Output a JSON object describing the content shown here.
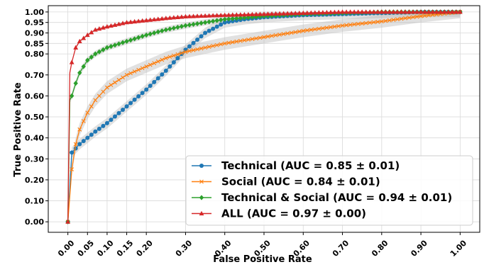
{
  "chart_data": {
    "type": "line",
    "xlabel": "False Positive Rate",
    "ylabel": "True Positive Rate",
    "title": "",
    "xlim": [
      -0.05,
      1.05
    ],
    "ylim": [
      -0.05,
      1.03
    ],
    "x_ticks": [
      0.0,
      0.05,
      0.1,
      0.15,
      0.2,
      0.3,
      0.4,
      0.5,
      0.6,
      0.7,
      0.8,
      0.9,
      1.0
    ],
    "x_tick_labels": [
      "0.00",
      "0.05",
      "0.10",
      "0.15",
      "0.20",
      "0.30",
      "0.40",
      "0.50",
      "0.60",
      "0.70",
      "0.80",
      "0.90",
      "1.00"
    ],
    "y_ticks": [
      0.0,
      0.1,
      0.2,
      0.3,
      0.4,
      0.5,
      0.6,
      0.7,
      0.8,
      0.85,
      0.9,
      0.95,
      1.0
    ],
    "y_tick_labels": [
      "0.00",
      "0.10",
      "0.20",
      "0.30",
      "0.40",
      "0.50",
      "0.60",
      "0.70",
      "0.80",
      "0.85",
      "0.90",
      "0.95",
      "1.00"
    ],
    "grid": true,
    "legend_position": "lower-right",
    "series": [
      {
        "name": "Technical (AUC = 0.85 ± 0.01)",
        "color": "#1f77b4",
        "marker": "circle",
        "band": 0.025,
        "x": [
          0.0,
          0.01,
          0.02,
          0.03,
          0.05,
          0.07,
          0.1,
          0.15,
          0.2,
          0.25,
          0.3,
          0.35,
          0.4,
          0.45,
          0.5,
          0.6,
          0.7,
          0.8,
          0.9,
          1.0
        ],
        "y": [
          0.0,
          0.33,
          0.35,
          0.37,
          0.4,
          0.43,
          0.47,
          0.55,
          0.63,
          0.72,
          0.82,
          0.9,
          0.95,
          0.965,
          0.975,
          0.985,
          0.99,
          0.995,
          1.0,
          1.0
        ]
      },
      {
        "name": "Social (AUC = 0.84 ± 0.01)",
        "color": "#ff7f0e",
        "marker": "x",
        "band": 0.03,
        "x": [
          0.0,
          0.01,
          0.02,
          0.03,
          0.05,
          0.07,
          0.1,
          0.15,
          0.2,
          0.25,
          0.3,
          0.35,
          0.4,
          0.45,
          0.5,
          0.6,
          0.7,
          0.8,
          0.9,
          1.0
        ],
        "y": [
          0.0,
          0.25,
          0.37,
          0.44,
          0.52,
          0.58,
          0.64,
          0.7,
          0.74,
          0.78,
          0.81,
          0.83,
          0.85,
          0.865,
          0.88,
          0.91,
          0.935,
          0.955,
          0.98,
          1.0
        ]
      },
      {
        "name": "Technical & Social (AUC = 0.94 ± 0.01)",
        "color": "#2ca02c",
        "marker": "diamond",
        "band": 0.015,
        "x": [
          0.0,
          0.005,
          0.01,
          0.02,
          0.03,
          0.05,
          0.07,
          0.1,
          0.15,
          0.2,
          0.25,
          0.3,
          0.35,
          0.4,
          0.5,
          0.6,
          0.7,
          0.8,
          0.9,
          1.0
        ],
        "y": [
          0.0,
          0.58,
          0.6,
          0.66,
          0.71,
          0.77,
          0.8,
          0.83,
          0.86,
          0.89,
          0.915,
          0.935,
          0.95,
          0.965,
          0.98,
          0.99,
          0.995,
          1.0,
          1.0,
          1.0
        ]
      },
      {
        "name": "ALL (AUC = 0.97 ± 0.00)",
        "color": "#d62728",
        "marker": "triangle",
        "band": 0.006,
        "x": [
          0.0,
          0.005,
          0.01,
          0.02,
          0.03,
          0.05,
          0.07,
          0.1,
          0.15,
          0.2,
          0.25,
          0.3,
          0.4,
          0.5,
          0.6,
          0.7,
          0.8,
          0.9,
          1.0
        ],
        "y": [
          0.0,
          0.71,
          0.76,
          0.83,
          0.86,
          0.89,
          0.915,
          0.93,
          0.95,
          0.96,
          0.97,
          0.978,
          0.985,
          0.99,
          0.995,
          1.0,
          1.0,
          1.0,
          1.0
        ]
      }
    ]
  }
}
